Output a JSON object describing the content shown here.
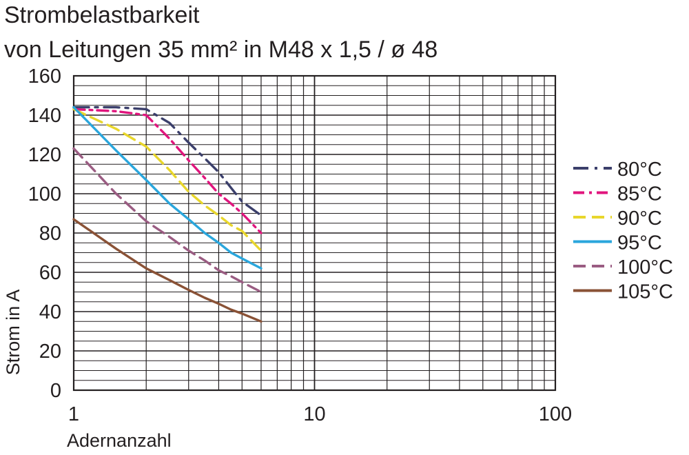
{
  "chart_data": {
    "type": "line",
    "title": "Strombelastbarkeit",
    "subtitle": "von Leitungen 35 mm² in M48 x 1,5 / ø 48",
    "xlabel": "Adernanzahl",
    "ylabel": "Strom in A",
    "x_scale": "log",
    "xlim": [
      1,
      100
    ],
    "ylim": [
      0,
      160
    ],
    "x_ticks": [
      "1",
      "10",
      "100"
    ],
    "y_ticks": [
      "0",
      "20",
      "40",
      "60",
      "80",
      "100",
      "120",
      "140",
      "160"
    ],
    "grid": true,
    "legend_position": "right",
    "series": [
      {
        "name": "80°C",
        "color": "#3b3f6b",
        "dash": "long-dash-dot",
        "x": [
          1,
          1.5,
          2,
          2.5,
          3,
          3.5,
          4,
          4.5,
          5,
          6
        ],
        "y": [
          144,
          144,
          143,
          136,
          126,
          118,
          111,
          103,
          96,
          89
        ]
      },
      {
        "name": "85°C",
        "color": "#e0157d",
        "dash": "dash-dot",
        "x": [
          1,
          1.5,
          2,
          2.5,
          3,
          3.5,
          4,
          4.5,
          5,
          6
        ],
        "y": [
          143,
          142,
          140,
          128,
          117,
          108,
          100,
          95,
          90,
          80
        ]
      },
      {
        "name": "90°C",
        "color": "#e8d62c",
        "dash": "dash",
        "x": [
          1,
          1.5,
          2,
          2.5,
          3,
          3.5,
          4,
          4.5,
          5,
          6
        ],
        "y": [
          143,
          133,
          124,
          112,
          101,
          94,
          89,
          84,
          81,
          71
        ]
      },
      {
        "name": "95°C",
        "color": "#2aa6dc",
        "dash": "solid",
        "x": [
          1,
          1.5,
          2,
          2.5,
          3,
          3.5,
          4,
          4.5,
          5,
          6
        ],
        "y": [
          144,
          122,
          107,
          95,
          87,
          80,
          75,
          70,
          67,
          62
        ]
      },
      {
        "name": "100°C",
        "color": "#9a5c82",
        "dash": "dash",
        "x": [
          1,
          1.5,
          2,
          2.5,
          3,
          3.5,
          4,
          4.5,
          5,
          6
        ],
        "y": [
          123,
          100,
          86,
          78,
          71,
          66,
          61,
          58,
          55,
          50
        ]
      },
      {
        "name": "105°C",
        "color": "#8a5236",
        "dash": "solid",
        "x": [
          1,
          1.5,
          2,
          2.5,
          3,
          3.5,
          4,
          4.5,
          5,
          6
        ],
        "y": [
          87,
          72,
          62,
          56,
          51,
          47,
          44,
          41,
          39,
          35
        ]
      }
    ]
  }
}
